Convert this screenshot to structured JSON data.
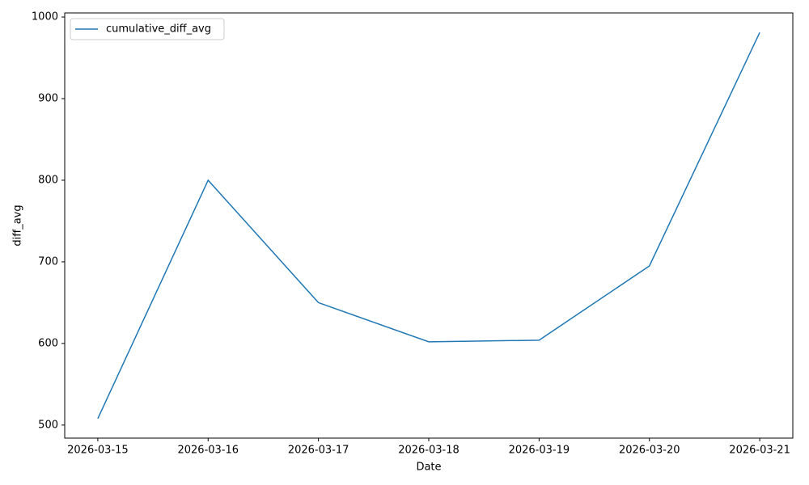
{
  "chart_data": {
    "type": "line",
    "x_label": "Date",
    "y_label": "diff_avg",
    "categories": [
      "2026-03-15",
      "2026-03-16",
      "2026-03-17",
      "2026-03-18",
      "2026-03-19",
      "2026-03-20",
      "2026-03-21"
    ],
    "series": [
      {
        "name": "cumulative_diff_avg",
        "color": "#1f77b4",
        "values": [
          508,
          800,
          650,
          602,
          604,
          695,
          981
        ]
      }
    ],
    "ylim": [
      484,
      1005
    ],
    "yticks": [
      500,
      600,
      700,
      800,
      900,
      1000
    ],
    "legend": "upper left"
  }
}
